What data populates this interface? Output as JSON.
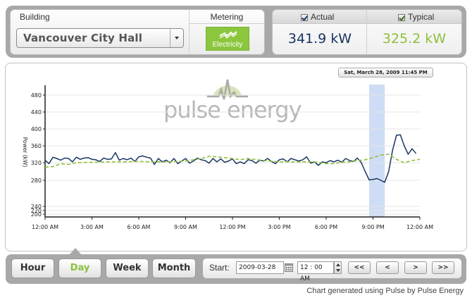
{
  "building": {
    "label": "Building",
    "selected": "Vancouver City Hall"
  },
  "metering": {
    "label": "Metering",
    "button_label": "Electricity",
    "accent": "#8cc63f"
  },
  "readings": {
    "actual_label": "Actual",
    "actual_value": "341.9 kW",
    "actual_color": "#1b3563",
    "actual_checked": true,
    "typical_label": "Typical",
    "typical_value": "325.2 kW",
    "typical_color": "#8dbf3b",
    "typical_checked": true
  },
  "chart_header": {
    "timestamp": "Sat, March 28, 2009 11:45 PM",
    "brand": "pulse energy"
  },
  "chart_data": {
    "type": "line",
    "title": "",
    "xlabel": "",
    "ylabel": "Power (kW)",
    "ylim": [
      200,
      500
    ],
    "yticks": [
      200,
      220,
      240,
      280,
      320,
      360,
      400,
      440,
      480
    ],
    "xlim": [
      0,
      24
    ],
    "xtick_labels": [
      "12:00 AM",
      "3:00 AM",
      "6:00 AM",
      "9:00 AM",
      "12:00 PM",
      "3:00 PM",
      "6:00 PM",
      "9:00 PM",
      "12:00 AM"
    ],
    "xticks": [
      0,
      3,
      6,
      9,
      12,
      15,
      18,
      21,
      24
    ],
    "highlight_range": [
      20.75,
      21.75
    ],
    "grid": "horizontal",
    "series": [
      {
        "name": "Actual",
        "color": "#1b3563",
        "style": "solid",
        "points": [
          [
            0,
            326
          ],
          [
            0.25,
            318
          ],
          [
            0.5,
            333
          ],
          [
            0.75,
            330
          ],
          [
            1,
            326
          ],
          [
            1.25,
            331
          ],
          [
            1.5,
            330
          ],
          [
            1.75,
            322
          ],
          [
            2,
            333
          ],
          [
            2.25,
            328
          ],
          [
            2.5,
            331
          ],
          [
            2.75,
            332
          ],
          [
            3,
            328
          ],
          [
            3.25,
            327
          ],
          [
            3.5,
            323
          ],
          [
            3.75,
            331
          ],
          [
            4,
            328
          ],
          [
            4.25,
            329
          ],
          [
            4.5,
            344
          ],
          [
            4.75,
            326
          ],
          [
            5,
            330
          ],
          [
            5.25,
            327
          ],
          [
            5.5,
            331
          ],
          [
            5.75,
            323
          ],
          [
            6,
            334
          ],
          [
            6.25,
            336
          ],
          [
            6.5,
            333
          ],
          [
            6.75,
            331
          ],
          [
            7,
            316
          ],
          [
            7.25,
            330
          ],
          [
            7.5,
            322
          ],
          [
            7.75,
            326
          ],
          [
            8,
            320
          ],
          [
            8.25,
            330
          ],
          [
            8.5,
            318
          ],
          [
            8.75,
            324
          ],
          [
            9,
            330
          ],
          [
            9.25,
            319
          ],
          [
            9.5,
            324
          ],
          [
            9.75,
            331
          ],
          [
            10,
            327
          ],
          [
            10.25,
            325
          ],
          [
            10.5,
            319
          ],
          [
            10.75,
            330
          ],
          [
            11,
            322
          ],
          [
            11.25,
            329
          ],
          [
            11.5,
            321
          ],
          [
            11.75,
            324
          ],
          [
            12,
            329
          ],
          [
            12.25,
            318
          ],
          [
            12.5,
            322
          ],
          [
            12.75,
            318
          ],
          [
            13,
            327
          ],
          [
            13.25,
            325
          ],
          [
            13.5,
            319
          ],
          [
            13.75,
            326
          ],
          [
            14,
            324
          ],
          [
            14.25,
            330
          ],
          [
            14.5,
            323
          ],
          [
            14.75,
            318
          ],
          [
            15,
            327
          ],
          [
            15.25,
            329
          ],
          [
            15.5,
            322
          ],
          [
            15.75,
            330
          ],
          [
            16,
            327
          ],
          [
            16.25,
            324
          ],
          [
            16.5,
            327
          ],
          [
            16.75,
            334
          ],
          [
            17,
            319
          ],
          [
            17.25,
            322
          ],
          [
            17.5,
            314
          ],
          [
            17.75,
            322
          ],
          [
            18,
            320
          ],
          [
            18.25,
            325
          ],
          [
            18.5,
            322
          ],
          [
            18.75,
            326
          ],
          [
            19,
            321
          ],
          [
            19.25,
            330
          ],
          [
            19.5,
            325
          ],
          [
            19.75,
            323
          ],
          [
            20,
            331
          ],
          [
            20.25,
            320
          ],
          [
            20.5,
            300
          ],
          [
            20.75,
            281
          ],
          [
            21,
            282
          ],
          [
            21.25,
            284
          ],
          [
            21.5,
            280
          ],
          [
            21.75,
            277
          ],
          [
            22,
            300
          ],
          [
            22.25,
            349
          ],
          [
            22.5,
            385
          ],
          [
            22.75,
            386
          ],
          [
            23,
            360
          ],
          [
            23.25,
            340
          ],
          [
            23.5,
            353
          ],
          [
            23.75,
            342
          ]
        ]
      },
      {
        "name": "Typical",
        "color": "#8dbf3b",
        "style": "dashed",
        "points": [
          [
            0,
            310
          ],
          [
            0.5,
            311
          ],
          [
            1,
            318
          ],
          [
            1.5,
            316
          ],
          [
            2,
            320
          ],
          [
            3,
            321
          ],
          [
            4,
            322
          ],
          [
            5,
            322
          ],
          [
            6,
            323
          ],
          [
            7,
            322
          ],
          [
            8,
            322
          ],
          [
            9,
            324
          ],
          [
            10,
            330
          ],
          [
            10.5,
            335
          ],
          [
            11,
            334
          ],
          [
            12,
            330
          ],
          [
            12.5,
            327
          ],
          [
            13,
            330
          ],
          [
            14,
            325
          ],
          [
            15,
            322
          ],
          [
            16,
            322
          ],
          [
            17,
            322
          ],
          [
            17.5,
            321
          ],
          [
            18,
            318
          ],
          [
            18.5,
            318
          ],
          [
            19,
            321
          ],
          [
            19.5,
            322
          ],
          [
            20,
            325
          ],
          [
            20.5,
            327
          ],
          [
            21,
            332
          ],
          [
            21.5,
            338
          ],
          [
            22,
            340
          ],
          [
            22.5,
            328
          ],
          [
            23,
            320
          ],
          [
            23.5,
            325
          ],
          [
            24,
            328
          ]
        ]
      }
    ]
  },
  "range_buttons": [
    {
      "label": "Hour",
      "active": false
    },
    {
      "label": "Day",
      "active": true
    },
    {
      "label": "Week",
      "active": false
    },
    {
      "label": "Month",
      "active": false
    }
  ],
  "start": {
    "label": "Start:",
    "date": "2009-03-28",
    "time": "12 : 00 AM"
  },
  "nav": {
    "first": "<<",
    "prev": "<",
    "next": ">",
    "last": ">>"
  },
  "footer": "Chart generated using Pulse by Pulse Energy"
}
